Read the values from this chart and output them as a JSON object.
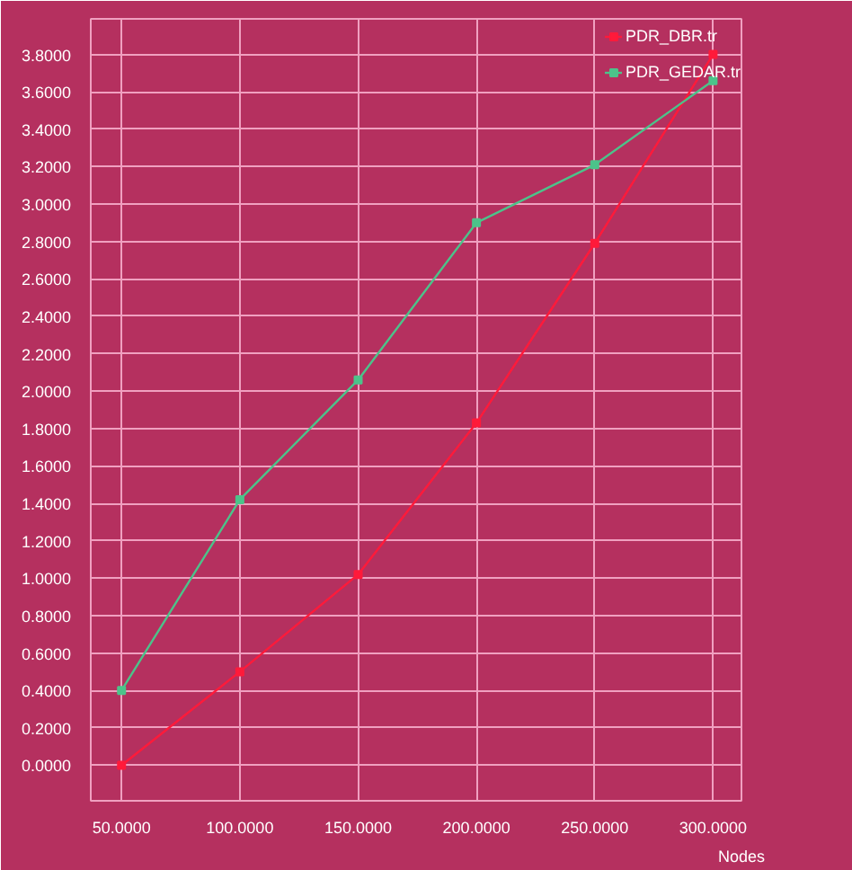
{
  "chart_data": {
    "type": "line",
    "xlabel": "Nodes",
    "x": [
      50,
      100,
      150,
      200,
      250,
      300
    ],
    "series": [
      {
        "name": "PDR_DBR.tr",
        "color": "#ff1a3a",
        "values": [
          0,
          0.5,
          1.02,
          1.83,
          2.79,
          3.8
        ]
      },
      {
        "name": "PDR_GEDAR.tr",
        "color": "#4cc38a",
        "values": [
          0.4,
          1.42,
          2.06,
          2.9,
          3.21,
          3.66
        ]
      }
    ],
    "xlim": [
      37,
      312
    ],
    "ylim": [
      -0.19,
      3.99
    ],
    "xticks": [
      {
        "value": 50,
        "label": "50.0000"
      },
      {
        "value": 100,
        "label": "100.0000"
      },
      {
        "value": 150,
        "label": "150.0000"
      },
      {
        "value": 200,
        "label": "200.0000"
      },
      {
        "value": 250,
        "label": "250.0000"
      },
      {
        "value": 300,
        "label": "300.0000"
      }
    ],
    "yticks": [
      {
        "value": 0,
        "label": "0.0000"
      },
      {
        "value": 0.2,
        "label": "0.2000"
      },
      {
        "value": 0.4,
        "label": "0.4000"
      },
      {
        "value": 0.6,
        "label": "0.6000"
      },
      {
        "value": 0.8,
        "label": "0.8000"
      },
      {
        "value": 1,
        "label": "1.0000"
      },
      {
        "value": 1.2,
        "label": "1.2000"
      },
      {
        "value": 1.4,
        "label": "1.4000"
      },
      {
        "value": 1.6,
        "label": "1.6000"
      },
      {
        "value": 1.8,
        "label": "1.8000"
      },
      {
        "value": 2,
        "label": "2.0000"
      },
      {
        "value": 2.2,
        "label": "2.2000"
      },
      {
        "value": 2.4,
        "label": "2.4000"
      },
      {
        "value": 2.6,
        "label": "2.6000"
      },
      {
        "value": 2.8,
        "label": "2.8000"
      },
      {
        "value": 3,
        "label": "3.0000"
      },
      {
        "value": 3.2,
        "label": "3.2000"
      },
      {
        "value": 3.4,
        "label": "3.4000"
      },
      {
        "value": 3.6,
        "label": "3.6000"
      },
      {
        "value": 3.8,
        "label": "3.8000"
      }
    ],
    "grid": true,
    "legend": "top right",
    "marker": "square",
    "line_style": "solid"
  }
}
